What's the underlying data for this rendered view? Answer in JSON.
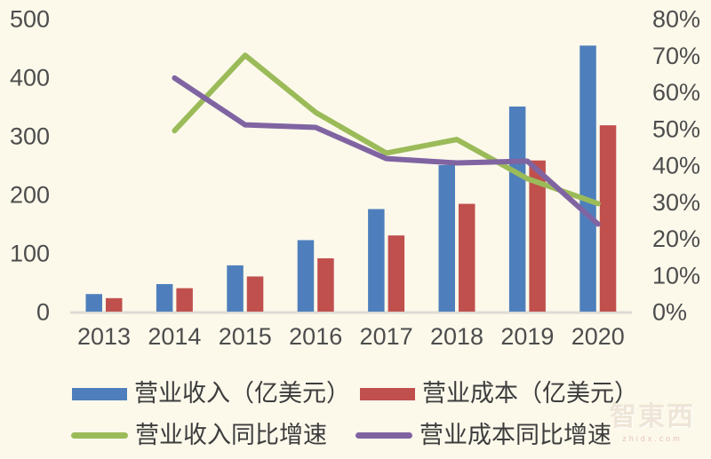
{
  "watermark": {
    "logo": "智東西",
    "domain": "zhidx.com"
  },
  "chart_data": {
    "type": "bar+line combo",
    "title": "",
    "categories": [
      "2013",
      "2014",
      "2015",
      "2016",
      "2017",
      "2018",
      "2019",
      "2020"
    ],
    "series": [
      {
        "id": "revenue",
        "name": "营业收入（亿美元）",
        "type": "bar",
        "axis": "left",
        "color": "#4E7FBC",
        "values": [
          30,
          47,
          79,
          122,
          175,
          250,
          350,
          454
        ]
      },
      {
        "id": "cost",
        "name": "营业成本（亿美元）",
        "type": "bar",
        "axis": "left",
        "color": "#C0504D",
        "values": [
          23,
          40,
          60,
          91,
          130,
          184,
          258,
          318
        ]
      },
      {
        "id": "revenue-growth",
        "name": "营业收入同比增速",
        "type": "line",
        "axis": "right",
        "color": "#9BBB59",
        "values": [
          null,
          49.4,
          70.0,
          54.4,
          43.3,
          47.0,
          36.3,
          29.5
        ]
      },
      {
        "id": "cost-growth",
        "name": "营业成本同比增速",
        "type": "line",
        "axis": "right",
        "color": "#8064A2",
        "values": [
          null,
          63.8,
          51.0,
          50.3,
          41.8,
          40.6,
          41.1,
          23.9
        ]
      }
    ],
    "left_axis": {
      "min": 0,
      "max": 500,
      "step": 100,
      "ticks": [
        "0",
        "100",
        "200",
        "300",
        "400",
        "500"
      ]
    },
    "right_axis": {
      "min": 0,
      "max": 80,
      "step": 10,
      "ticks": [
        "0%",
        "10%",
        "20%",
        "30%",
        "40%",
        "50%",
        "60%",
        "70%",
        "80%"
      ]
    },
    "grid": false,
    "legend_position": "bottom"
  }
}
